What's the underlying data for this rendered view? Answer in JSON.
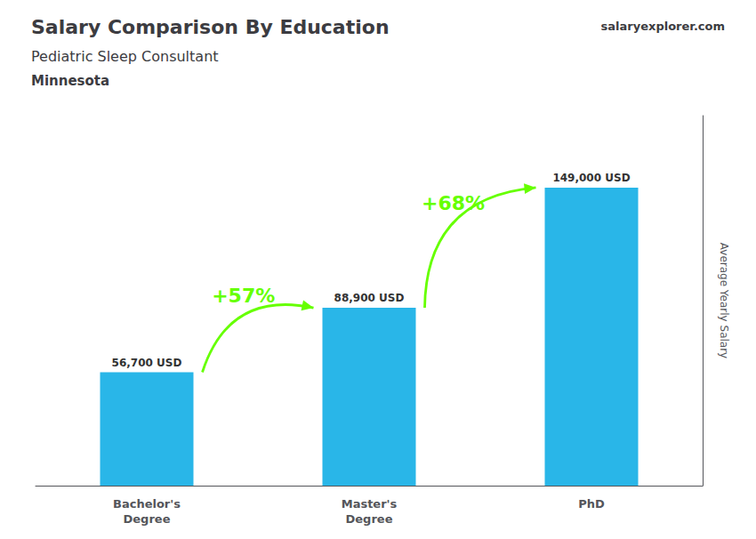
{
  "chart_data": {
    "type": "bar",
    "title": "Salary Comparison By Education",
    "subtitle": "Pediatric Sleep Consultant",
    "location": "Minnesota",
    "watermark": "salaryexplorer.com",
    "categories": [
      "Bachelor's\nDegree",
      "Master's\nDegree",
      "PhD"
    ],
    "values": [
      56700,
      88900,
      149000
    ],
    "value_labels": [
      "56,700 USD",
      "88,900 USD",
      "149,000 USD"
    ],
    "data_labels": true,
    "color": "#29b6e8",
    "ylabel": "Average Yearly Salary",
    "ylim": [
      0,
      185000
    ],
    "yticks": [],
    "tick_labels": "x",
    "grid": false,
    "annotations": [
      {
        "text": "+57%",
        "from": "Bachelor's\nDegree",
        "to": "Master's\nDegree",
        "color": "#66ff00"
      },
      {
        "text": "+68%",
        "from": "Master's\nDegree",
        "to": "PhD",
        "color": "#66ff00"
      }
    ]
  }
}
